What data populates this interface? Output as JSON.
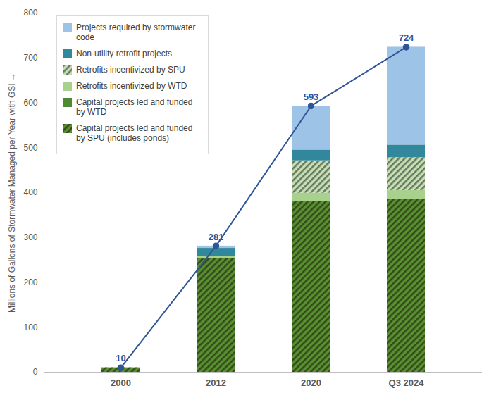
{
  "chart_data": {
    "type": "bar",
    "stacked": true,
    "categories": [
      "2000",
      "2012",
      "2020",
      "Q3 2024"
    ],
    "y_label": "Millions of Gallons of Stormwater Managed per Year with GSI",
    "ylim": [
      0,
      800
    ],
    "yticks": [
      0,
      100,
      200,
      300,
      400,
      500,
      600,
      700,
      800
    ],
    "grid": false,
    "legend": "upper left",
    "series": [
      {
        "name": "Capital projects led and funded by SPU (includes ponds)",
        "color": "#5b8f31",
        "line_style": "hatched",
        "values": [
          10,
          254,
          381,
          385
        ]
      },
      {
        "name": "Capital projects led and funded by WTD",
        "color": "#4e8a33",
        "values": [
          0,
          0,
          0,
          0
        ]
      },
      {
        "name": "Retrofits incentivized by WTD",
        "color": "#a9d18e",
        "values": [
          0,
          4,
          18,
          20
        ]
      },
      {
        "name": "Retrofits incentivized by SPU",
        "color": "#c5e0b4",
        "line_style": "hatched",
        "values": [
          0,
          0,
          72,
          73
        ]
      },
      {
        "name": "Non-utility retrofit projects",
        "color": "#31879c",
        "values": [
          0,
          18,
          24,
          28
        ]
      },
      {
        "name": "Projects required by stormwater code",
        "color": "#9dc3e6",
        "values": [
          0,
          5,
          98,
          218
        ]
      },
      {
        "type": "line",
        "color": "#2f5597",
        "marker": "circle",
        "data_labels": true,
        "values": [
          10,
          281,
          593,
          724
        ]
      }
    ]
  }
}
